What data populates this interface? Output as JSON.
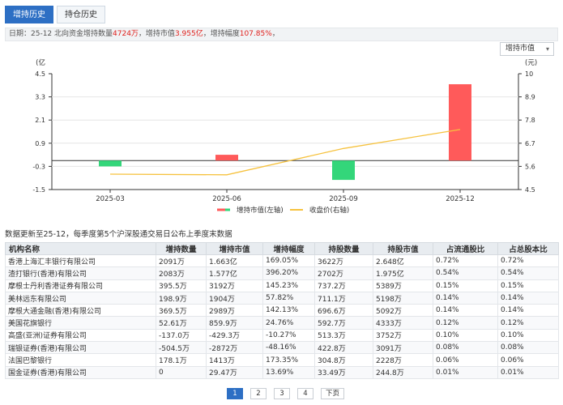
{
  "tabs": [
    {
      "label": "增持历史",
      "active": true
    },
    {
      "label": "持仓历史",
      "active": false
    }
  ],
  "info": {
    "prefix": "日期：25-12 北向资金增持数量",
    "qty": "4724万",
    "mid": "，增持市值",
    "value": "3.955亿",
    "mid2": "，增持幅度",
    "pct": "107.85%",
    "suffix": "，"
  },
  "dropdown": {
    "value": "增持市值"
  },
  "chart_data": {
    "type": "bar",
    "categories": [
      "2025-03",
      "2025-06",
      "2025-09",
      "2025-12"
    ],
    "series": [
      {
        "name": "增持市值(左轴)",
        "values": [
          -0.3,
          0.3,
          -1.0,
          3.955
        ],
        "axis": "left"
      },
      {
        "name": "收盘价(右轴)",
        "type": "line",
        "values": [
          5.23,
          5.2,
          6.45,
          7.35
        ],
        "axis": "right"
      }
    ],
    "left_unit": "(亿",
    "right_unit": "(元)",
    "left_ticks": [
      "4.5",
      "3.3",
      "2.1",
      "0.9",
      "-0.3",
      "-1.5"
    ],
    "right_ticks": [
      "10",
      "8.9",
      "7.8",
      "6.7",
      "5.6",
      "4.5"
    ],
    "ylim": [
      -1.5,
      4.5
    ],
    "y2lim": [
      4.5,
      10
    ],
    "colors": {
      "positive": "#ff5a5a",
      "negative": "#33d67a",
      "line": "#f6c23e"
    },
    "legend_placement": "bottom-center"
  },
  "note": "数据更新至25-12，每季度第5个沪深股通交易日公布上季度末数据",
  "table": {
    "headers": [
      "机构名称",
      "增持数量",
      "增持市值",
      "增持幅度",
      "持股数量",
      "持股市值",
      "占流通股比",
      "占总股本比"
    ],
    "rows": [
      [
        "香港上海汇丰银行有限公司",
        "2091万",
        "1.663亿",
        "169.05%",
        "3622万",
        "2.648亿",
        "0.72%",
        "0.72%"
      ],
      [
        "渣打银行(香港)有限公司",
        "2083万",
        "1.577亿",
        "396.20%",
        "2702万",
        "1.975亿",
        "0.54%",
        "0.54%"
      ],
      [
        "摩根士丹利香港证券有限公司",
        "395.5万",
        "3192万",
        "145.23%",
        "737.2万",
        "5389万",
        "0.15%",
        "0.15%"
      ],
      [
        "美林远东有限公司",
        "198.9万",
        "1904万",
        "57.82%",
        "711.1万",
        "5198万",
        "0.14%",
        "0.14%"
      ],
      [
        "摩根大通金融(香港)有限公司",
        "369.5万",
        "2989万",
        "142.13%",
        "696.6万",
        "5092万",
        "0.14%",
        "0.14%"
      ],
      [
        "美国花旗银行",
        "52.61万",
        "859.9万",
        "24.76%",
        "592.7万",
        "4333万",
        "0.12%",
        "0.12%"
      ],
      [
        "高盛(亚洲)证券有限公司",
        "-137.0万",
        "-429.3万",
        "-10.27%",
        "513.3万",
        "3752万",
        "0.10%",
        "0.10%"
      ],
      [
        "瑞银证券(香港)有限公司",
        "-504.5万",
        "-2872万",
        "-48.16%",
        "422.8万",
        "3091万",
        "0.08%",
        "0.08%"
      ],
      [
        "法国巴黎银行",
        "178.1万",
        "1413万",
        "173.35%",
        "304.8万",
        "2228万",
        "0.06%",
        "0.06%"
      ],
      [
        "国金证券(香港)有限公司",
        "0",
        "29.47万",
        "13.69%",
        "33.49万",
        "244.8万",
        "0.01%",
        "0.01%"
      ]
    ]
  },
  "pagination": {
    "pages": [
      "1",
      "2",
      "3",
      "4"
    ],
    "current": "1",
    "next": "下页"
  }
}
